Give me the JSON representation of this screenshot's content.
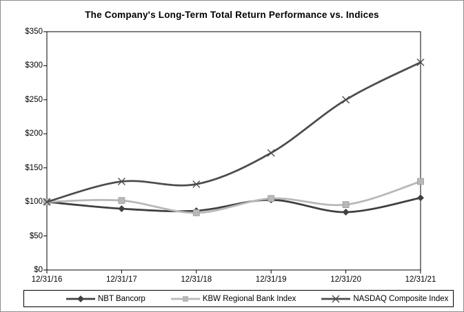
{
  "title": "The Company's Long-Term Total Return Performance vs. Indices",
  "chart_data": {
    "type": "line",
    "title": "The Company's Long-Term Total Return Performance vs. Indices",
    "categories": [
      "12/31/16",
      "12/31/17",
      "12/31/18",
      "12/31/19",
      "12/31/20",
      "12/31/21"
    ],
    "series": [
      {
        "name": "NBT Bancorp",
        "marker": "diamond",
        "color": "#404040",
        "values": [
          100,
          90,
          87,
          103,
          85,
          106
        ]
      },
      {
        "name": "KBW Regional Bank Index",
        "marker": "square",
        "color": "#b8b8b8",
        "values": [
          100,
          102,
          84,
          105,
          96,
          130
        ]
      },
      {
        "name": "NASDAQ Composite Index",
        "marker": "x",
        "color": "#4d4d4d",
        "values": [
          100,
          130,
          126,
          172,
          250,
          305
        ]
      }
    ],
    "xlabel": "",
    "ylabel": "",
    "ylim": [
      0,
      350
    ],
    "ytick_step": 50,
    "ytick_labels": [
      "$0",
      "$50",
      "$100",
      "$150",
      "$200",
      "$250",
      "$300",
      "$350"
    ],
    "grid": false,
    "legend_position": "bottom",
    "axis_color": "#000000",
    "background_color": "#ffffff"
  }
}
